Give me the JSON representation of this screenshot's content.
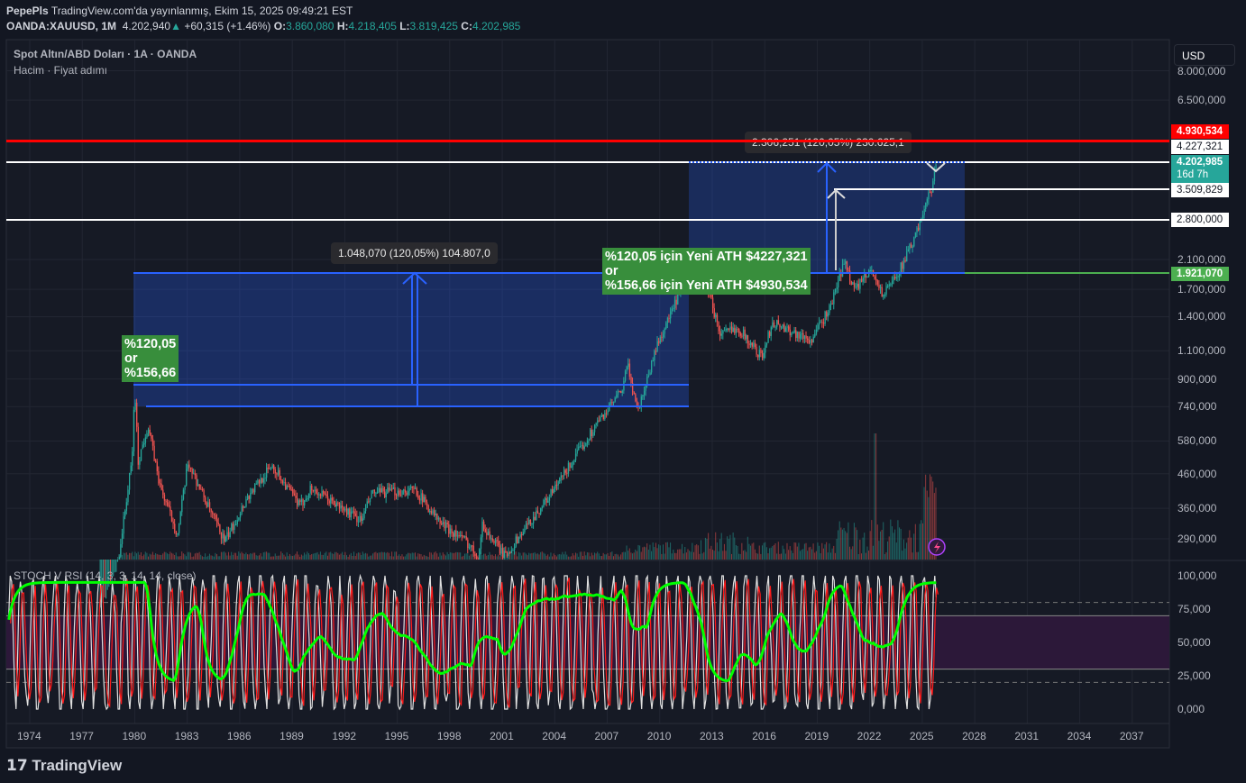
{
  "header": {
    "author": "PepePls",
    "published": "TradingView.com'da yayınlanmış, Ekim 15, 2025 09:49:21 EST",
    "symbol": "OANDA:XAUUSD, 1M",
    "last": "4.202,940",
    "change": "+60,315 (+1.46%)",
    "o_label": "O:",
    "o": "3.860,080",
    "h_label": "H:",
    "h": "4.218,405",
    "l_label": "L:",
    "l": "3.819,425",
    "c_label": "C:",
    "c": "4.202,985"
  },
  "pane": {
    "title": "Spot Altın/ABD Doları · 1A · OANDA",
    "subtitle": "Hacim · Fiyat adımı",
    "currency": "USD"
  },
  "indicator": {
    "title": "STOCH V RSI (14, 3, 3, 14, 14, close)",
    "levels": [
      80,
      70,
      30,
      20
    ]
  },
  "price_tags": {
    "red": "4.930,534",
    "white1": "4.227,321",
    "current": "4.202,985",
    "countdown": "16d 7h",
    "white2": "3.509,829",
    "white3": "2.800,000",
    "green": "1.921,070"
  },
  "annotations": {
    "left_box_line1": "%120,05",
    "left_box_line2": "or",
    "left_box_line3": "%156,66",
    "right_box_line1": "%120,05 için Yeni ATH $4227,321",
    "right_box_line2": "or",
    "right_box_line3": "%156,66 için Yeni ATH $4930,534",
    "measure1": "1.048,070 (120,05%) 104.807,0",
    "measure2": "2.306,251 (120,05%) 230.625,1"
  },
  "logo": "TradingView",
  "colors": {
    "up": "#26a69a",
    "down": "#ef5350",
    "red_line": "#ff0000",
    "green_line": "#4caf50",
    "blue": "#2962ff",
    "rsi_green": "#00ff00"
  },
  "chart_data": {
    "type": "candlestick",
    "scale": "log",
    "interval": "1M",
    "yticks": [
      "8.000,000",
      "6.500,000",
      "2.100,000",
      "1.700,000",
      "1.400,000",
      "1.100,000",
      "900,000",
      "740,000",
      "580,000",
      "460,000",
      "360,000",
      "290,000"
    ],
    "ytick_values": [
      8000,
      6500,
      2100,
      1700,
      1400,
      1100,
      900,
      740,
      580,
      460,
      360,
      290
    ],
    "xticks": [
      "1974",
      "1977",
      "1980",
      "1983",
      "1986",
      "1989",
      "1992",
      "1995",
      "1998",
      "2001",
      "2004",
      "2007",
      "2010",
      "2013",
      "2016",
      "2019",
      "2022",
      "2025",
      "2028",
      "2031",
      "2034",
      "2037"
    ],
    "price_path": [
      [
        1978.0,
        170
      ],
      [
        1979.0,
        226
      ],
      [
        1979.9,
        512
      ],
      [
        1980.05,
        850
      ],
      [
        1980.25,
        500
      ],
      [
        1980.8,
        650
      ],
      [
        1981.5,
        420
      ],
      [
        1982.5,
        300
      ],
      [
        1983.1,
        500
      ],
      [
        1984.5,
        340
      ],
      [
        1985.2,
        285
      ],
      [
        1986.5,
        390
      ],
      [
        1987.9,
        490
      ],
      [
        1989.5,
        365
      ],
      [
        1990.1,
        415
      ],
      [
        1993.0,
        330
      ],
      [
        1993.6,
        400
      ],
      [
        1996.1,
        410
      ],
      [
        1997.5,
        325
      ],
      [
        1999.0,
        285
      ],
      [
        1999.7,
        255
      ],
      [
        1999.9,
        320
      ],
      [
        2001.2,
        256
      ],
      [
        2002.5,
        320
      ],
      [
        2004.0,
        410
      ],
      [
        2006.4,
        650
      ],
      [
        2007.9,
        830
      ],
      [
        2008.2,
        1000
      ],
      [
        2008.8,
        720
      ],
      [
        2009.9,
        1150
      ],
      [
        2011.7,
        1900
      ],
      [
        2012.8,
        1720
      ],
      [
        2013.5,
        1230
      ],
      [
        2014.5,
        1300
      ],
      [
        2015.9,
        1050
      ],
      [
        2016.5,
        1350
      ],
      [
        2018.7,
        1180
      ],
      [
        2019.8,
        1500
      ],
      [
        2020.6,
        2070
      ],
      [
        2021.2,
        1700
      ],
      [
        2022.2,
        1950
      ],
      [
        2022.8,
        1620
      ],
      [
        2024.0,
        2060
      ],
      [
        2024.9,
        2650
      ],
      [
        2025.3,
        3300
      ],
      [
        2025.6,
        3350
      ],
      [
        2025.8,
        4203
      ]
    ],
    "rsi_ylim": [
      0,
      100
    ],
    "rsi_yticks": [
      "100,000",
      "75,000",
      "50,000",
      "25,000",
      "0,000"
    ],
    "levels": {
      "red": 4930.534,
      "white1": 4227.321,
      "white2": 3509.829,
      "white3": 2800,
      "green": 1921.07
    }
  }
}
